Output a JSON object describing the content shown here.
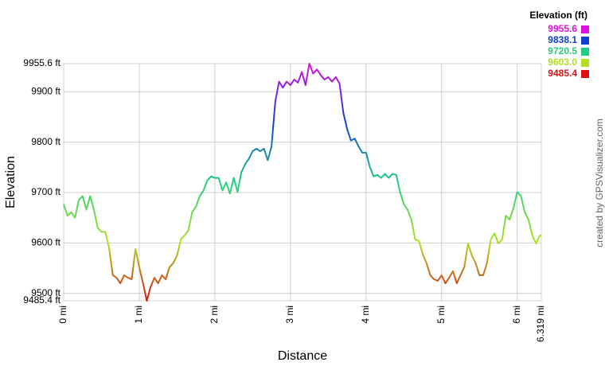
{
  "chart_data": {
    "type": "line",
    "xlabel": "Distance",
    "ylabel": "Elevation",
    "credit": "created by GPSVisualizer.com",
    "legend": {
      "title": "Elevation (ft)",
      "position": "top-right",
      "entries": [
        {
          "value": 9955.6,
          "label": "9955.6",
          "color": "#e010e0"
        },
        {
          "value": 9838.1,
          "label": "9838.1",
          "color": "#1040d0"
        },
        {
          "value": 9720.5,
          "label": "9720.5",
          "color": "#20d080"
        },
        {
          "value": 9603.0,
          "label": "9603.0",
          "color": "#b0e020"
        },
        {
          "value": 9485.4,
          "label": "9485.4",
          "color": "#e01010"
        }
      ]
    },
    "grid": true,
    "xlim": [
      0,
      6.319
    ],
    "ylim": [
      9485.4,
      9955.6
    ],
    "xticks": [
      {
        "value": 0,
        "label": "0 mi"
      },
      {
        "value": 1,
        "label": "1 mi"
      },
      {
        "value": 2,
        "label": "2 mi"
      },
      {
        "value": 3,
        "label": "3 mi"
      },
      {
        "value": 4,
        "label": "4 mi"
      },
      {
        "value": 5,
        "label": "5 mi"
      },
      {
        "value": 6,
        "label": "6 mi"
      },
      {
        "value": 6.319,
        "label": "6.319 mi"
      }
    ],
    "yticks": [
      {
        "value": 9485.4,
        "label": "9485.4 ft"
      },
      {
        "value": 9500,
        "label": "9500 ft"
      },
      {
        "value": 9600,
        "label": "9600 ft"
      },
      {
        "value": 9700,
        "label": "9700 ft"
      },
      {
        "value": 9800,
        "label": "9800 ft"
      },
      {
        "value": 9900,
        "label": "9900 ft"
      },
      {
        "value": 9955.6,
        "label": "9955.6 ft"
      }
    ],
    "x": [
      0,
      0.05,
      0.1,
      0.15,
      0.2,
      0.25,
      0.3,
      0.35,
      0.4,
      0.45,
      0.5,
      0.55,
      0.6,
      0.65,
      0.7,
      0.75,
      0.8,
      0.85,
      0.9,
      0.95,
      1.0,
      1.05,
      1.1,
      1.15,
      1.2,
      1.25,
      1.3,
      1.35,
      1.4,
      1.45,
      1.5,
      1.55,
      1.6,
      1.65,
      1.7,
      1.75,
      1.8,
      1.85,
      1.9,
      1.95,
      2.0,
      2.05,
      2.1,
      2.15,
      2.2,
      2.25,
      2.3,
      2.35,
      2.4,
      2.45,
      2.5,
      2.55,
      2.6,
      2.65,
      2.7,
      2.75,
      2.8,
      2.85,
      2.9,
      2.95,
      3.0,
      3.05,
      3.1,
      3.15,
      3.2,
      3.25,
      3.3,
      3.35,
      3.4,
      3.45,
      3.5,
      3.55,
      3.6,
      3.65,
      3.7,
      3.75,
      3.8,
      3.85,
      3.9,
      3.95,
      4.0,
      4.05,
      4.1,
      4.15,
      4.2,
      4.25,
      4.3,
      4.35,
      4.4,
      4.45,
      4.5,
      4.55,
      4.6,
      4.65,
      4.7,
      4.75,
      4.8,
      4.85,
      4.9,
      4.95,
      5.0,
      5.05,
      5.1,
      5.15,
      5.2,
      5.25,
      5.3,
      5.35,
      5.4,
      5.45,
      5.5,
      5.55,
      5.6,
      5.65,
      5.7,
      5.75,
      5.8,
      5.85,
      5.9,
      5.95,
      6.0,
      6.05,
      6.1,
      6.15,
      6.2,
      6.25,
      6.3,
      6.319
    ],
    "values": [
      9677,
      9654,
      9661,
      9650,
      9685,
      9693,
      9666,
      9693,
      9666,
      9630,
      9622,
      9622,
      9591,
      9536,
      9531,
      9520,
      9536,
      9531,
      9528,
      9588,
      9552,
      9520,
      9485.4,
      9513,
      9531,
      9520,
      9536,
      9528,
      9552,
      9560,
      9575,
      9607,
      9615,
      9625,
      9661,
      9672,
      9693,
      9704,
      9724,
      9732,
      9729,
      9729,
      9704,
      9720,
      9698,
      9729,
      9701,
      9740,
      9756,
      9767,
      9782,
      9787,
      9782,
      9787,
      9764,
      9792,
      9881,
      9920,
      9908,
      9920,
      9913,
      9924,
      9918,
      9939,
      9913,
      9955.6,
      9936,
      9944,
      9933,
      9924,
      9929,
      9920,
      9929,
      9916,
      9858,
      9826,
      9803,
      9807,
      9792,
      9779,
      9779,
      9751,
      9732,
      9735,
      9729,
      9737,
      9729,
      9737,
      9735,
      9701,
      9677,
      9666,
      9646,
      9607,
      9604,
      9578,
      9560,
      9536,
      9528,
      9525,
      9536,
      9520,
      9531,
      9544,
      9520,
      9536,
      9552,
      9599,
      9575,
      9560,
      9536,
      9536,
      9560,
      9607,
      9619,
      9599,
      9607,
      9654,
      9646,
      9669,
      9701,
      9693,
      9661,
      9646,
      9615,
      9599,
      9615,
      9615
    ]
  }
}
